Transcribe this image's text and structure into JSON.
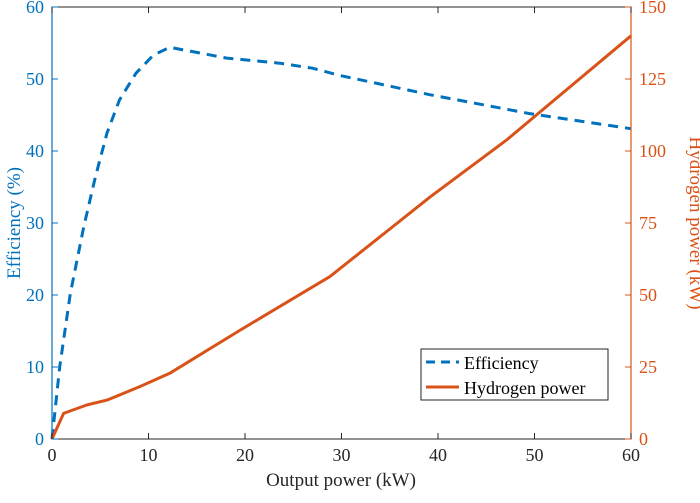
{
  "chart_data": {
    "type": "line",
    "title": "",
    "xlabel": "Output power (kW)",
    "ylabel_left": "Efficiency (%)",
    "ylabel_right": "Hydrogen power (kW)",
    "xlim": [
      0,
      60
    ],
    "ylim_left": [
      0,
      60
    ],
    "ylim_right": [
      0,
      150
    ],
    "x_ticks": [
      "0",
      "10",
      "20",
      "30",
      "40",
      "50",
      "60"
    ],
    "y_ticks_left": [
      "0",
      "10",
      "20",
      "30",
      "40",
      "50",
      "60"
    ],
    "y_ticks_right": [
      "0",
      "25",
      "50",
      "75",
      "100",
      "125",
      "150"
    ],
    "grid": false,
    "legend_position": "bottom-right",
    "colors": {
      "left": "#0072BD",
      "right": "#D95319",
      "axis": "#262626"
    },
    "series": [
      {
        "name": "Efficiency",
        "axis": "left",
        "style": "dashed",
        "color": "#0072BD",
        "x": [
          0,
          0.8,
          1.9,
          3.3,
          4.5,
          5.7,
          7.0,
          8.7,
          10.5,
          12.2,
          18.1,
          23.6,
          27.0,
          29.8,
          39.2,
          49.5,
          60
        ],
        "y": [
          0,
          10.0,
          20.2,
          29.5,
          36.4,
          42.5,
          47.1,
          50.8,
          53.3,
          54.4,
          52.9,
          52.2,
          51.5,
          50.5,
          47.8,
          45.2,
          43.1
        ]
      },
      {
        "name": "Hydrogen power",
        "axis": "right",
        "style": "solid",
        "color": "#D95319",
        "x": [
          0,
          1.2,
          3.6,
          5.7,
          9.1,
          12.2,
          19.5,
          28.8,
          39.2,
          47.1,
          50.2,
          60
        ],
        "y": [
          0,
          8.9,
          11.8,
          13.5,
          18.2,
          22.8,
          37.8,
          56.4,
          84.1,
          103.8,
          112.5,
          140
        ]
      }
    ]
  }
}
